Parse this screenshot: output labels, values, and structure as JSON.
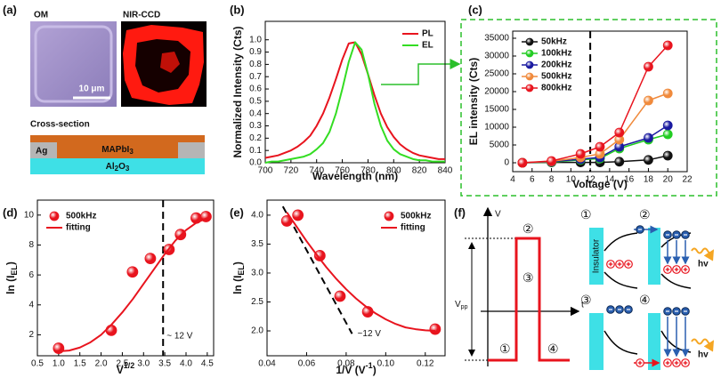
{
  "panel_a": {
    "label": "(a)",
    "om": "OM",
    "nir": "NIR-CCD",
    "scale_bar": "10 μm",
    "cross_section": "Cross-section",
    "ag": "Ag",
    "perovskite": {
      "text": "MAPbI",
      "sub": "3"
    },
    "substrate": {
      "text": "Al",
      "sub": "2",
      "after": "O",
      "sub2": "3"
    }
  },
  "chart_data": [
    {
      "type": "line",
      "panel": "(b)",
      "x_label": "Wavelength (nm)",
      "y_label": "Normalized Intensity (Cts)",
      "x": [
        700,
        705,
        710,
        715,
        720,
        725,
        730,
        735,
        740,
        745,
        750,
        755,
        760,
        765,
        770,
        775,
        780,
        785,
        790,
        795,
        800,
        805,
        810,
        815,
        820,
        825,
        830,
        835,
        840
      ],
      "series": [
        {
          "name": "PL",
          "color": "#e8141e",
          "style": "line",
          "values": [
            0.04,
            0.05,
            0.06,
            0.08,
            0.1,
            0.13,
            0.17,
            0.22,
            0.3,
            0.4,
            0.53,
            0.68,
            0.84,
            0.97,
            0.98,
            0.88,
            0.72,
            0.55,
            0.4,
            0.29,
            0.21,
            0.15,
            0.11,
            0.08,
            0.06,
            0.05,
            0.04,
            0.03,
            0.03
          ]
        },
        {
          "name": "EL",
          "color": "#33dd22",
          "style": "line",
          "values": [
            0.0,
            0.01,
            0.01,
            0.02,
            0.03,
            0.04,
            0.05,
            0.07,
            0.11,
            0.16,
            0.25,
            0.4,
            0.6,
            0.82,
            0.98,
            0.92,
            0.72,
            0.48,
            0.3,
            0.18,
            0.11,
            0.07,
            0.05,
            0.03,
            0.02,
            0.02,
            0.01,
            0.01,
            0.01
          ]
        }
      ],
      "xlim": [
        700,
        840
      ],
      "ylim": [
        0,
        1.15
      ],
      "xticks": [
        700,
        720,
        740,
        760,
        780,
        800,
        820,
        840
      ],
      "yticks": [
        {
          "value": 0,
          "label": "0.0"
        },
        0.1,
        0.2,
        0.3,
        0.4,
        0.5,
        0.6,
        0.7,
        0.8,
        0.9,
        {
          "value": 1,
          "label": "1.0"
        }
      ],
      "legend": "upper right"
    },
    {
      "type": "line",
      "panel": "(c)",
      "x_label": "Voltage (V)",
      "y_label": "EL intensity (Cts)",
      "x": [
        5,
        8,
        11,
        13,
        15,
        18,
        20
      ],
      "series": [
        {
          "name": "50kHz",
          "color": "#111111",
          "style": "line+markers",
          "values": [
            0,
            100,
            100,
            100,
            300,
            800,
            2000
          ]
        },
        {
          "name": "100kHz",
          "color": "#22cc22",
          "style": "line+markers",
          "values": [
            0,
            200,
            800,
            1200,
            4000,
            6500,
            8000
          ]
        },
        {
          "name": "200kHz",
          "color": "#1a1aa0",
          "style": "line+markers",
          "values": [
            0,
            300,
            1000,
            1500,
            4500,
            7000,
            10500
          ]
        },
        {
          "name": "500kHz",
          "color": "#f08a3c",
          "style": "line+markers",
          "values": [
            0,
            400,
            1500,
            2500,
            6500,
            17500,
            19500
          ]
        },
        {
          "name": "800kHz",
          "color": "#e8141e",
          "style": "line+markers",
          "values": [
            0,
            500,
            2500,
            4500,
            8500,
            27000,
            33000
          ]
        }
      ],
      "xlim": [
        4,
        22
      ],
      "ylim": [
        -2500,
        37000
      ],
      "xticks": [
        4,
        6,
        8,
        10,
        12,
        14,
        16,
        18,
        20,
        22
      ],
      "yticks": [
        0,
        5000,
        10000,
        15000,
        20000,
        25000,
        30000,
        35000
      ],
      "vline": 12,
      "legend": "upper left"
    },
    {
      "type": "scatter",
      "panel": "(d)",
      "x_label": {
        "text": "V",
        "sup": "1/2"
      },
      "y_label": {
        "text": "ln (I",
        "sub": "EL",
        "after": ")"
      },
      "series": [
        {
          "name": "500kHz",
          "color": "#e8141e",
          "style": "markers",
          "x": [
            1.0,
            2.24,
            2.74,
            3.16,
            3.6,
            3.87,
            4.24,
            4.47
          ],
          "values": [
            1.1,
            2.3,
            6.2,
            7.1,
            7.7,
            8.7,
            9.8,
            9.9
          ]
        },
        {
          "name": "fitting",
          "color": "#e8141e",
          "style": "line",
          "x": [
            1.0,
            1.25,
            1.5,
            1.75,
            2.0,
            2.25,
            2.5,
            2.75,
            3.0,
            3.25,
            3.5,
            3.75,
            4.0,
            4.25,
            4.5
          ],
          "values": [
            0.9,
            0.95,
            1.15,
            1.5,
            2.0,
            2.7,
            3.5,
            4.4,
            5.4,
            6.4,
            7.4,
            8.3,
            9.0,
            9.5,
            9.8
          ]
        }
      ],
      "xlim": [
        0.5,
        4.65
      ],
      "ylim": [
        0.6,
        11.0
      ],
      "xticks": [
        0.5,
        {
          "value": 1,
          "label": "1.0"
        },
        1.5,
        {
          "value": 2,
          "label": "2.0"
        },
        2.5,
        {
          "value": 3,
          "label": "3.0"
        },
        3.5,
        {
          "value": 4,
          "label": "4.0"
        },
        4.5
      ],
      "yticks": [
        2,
        4,
        6,
        8,
        10
      ],
      "vline": 3.46,
      "annotation": "~ 12 V",
      "legend": "upper left"
    },
    {
      "type": "scatter",
      "panel": "(e)",
      "x_label": {
        "text": "1/V (V",
        "sup": "-1",
        "after": ")"
      },
      "y_label": {
        "text": "ln (I",
        "sub": "EL",
        "after": ")"
      },
      "series": [
        {
          "name": "500kHz",
          "color": "#e8141e",
          "style": "markers",
          "x": [
            0.05,
            0.0556,
            0.0667,
            0.0769,
            0.0909,
            0.125
          ],
          "values": [
            3.9,
            4.0,
            3.3,
            2.6,
            2.33,
            2.03
          ]
        },
        {
          "name": "fitting",
          "color": "#e8141e",
          "style": "line",
          "x": [
            0.05,
            0.055,
            0.06,
            0.065,
            0.07,
            0.075,
            0.08,
            0.085,
            0.09,
            0.095,
            0.1,
            0.105,
            0.11,
            0.115,
            0.12,
            0.125
          ],
          "values": [
            4.05,
            3.8,
            3.55,
            3.32,
            3.1,
            2.9,
            2.72,
            2.56,
            2.42,
            2.3,
            2.2,
            2.12,
            2.06,
            2.03,
            2.01,
            2.0
          ]
        }
      ],
      "xlim": [
        0.04,
        0.13
      ],
      "ylim": [
        1.57,
        4.26
      ],
      "xticks": [
        0.04,
        0.06,
        0.08,
        {
          "value": 0.1,
          "label": "0.10"
        },
        0.12
      ],
      "yticks": [
        {
          "value": 2,
          "label": "2.0"
        },
        2.5,
        {
          "value": 3,
          "label": "3.0"
        },
        3.5,
        {
          "value": 4,
          "label": "4.0"
        }
      ],
      "guide": {
        "x": [
          0.048,
          0.083
        ],
        "values": [
          4.15,
          1.95
        ]
      },
      "annotation": "~12 V",
      "legend": "upper right"
    }
  ],
  "panel_f": {
    "label": "(f)",
    "v_axis": "V",
    "t_axis": "t",
    "vpp": {
      "text": "V",
      "sub": "pp"
    },
    "states": [
      "①",
      "②",
      "③",
      "④"
    ],
    "insulator": "Insulator",
    "photon": "hv"
  }
}
